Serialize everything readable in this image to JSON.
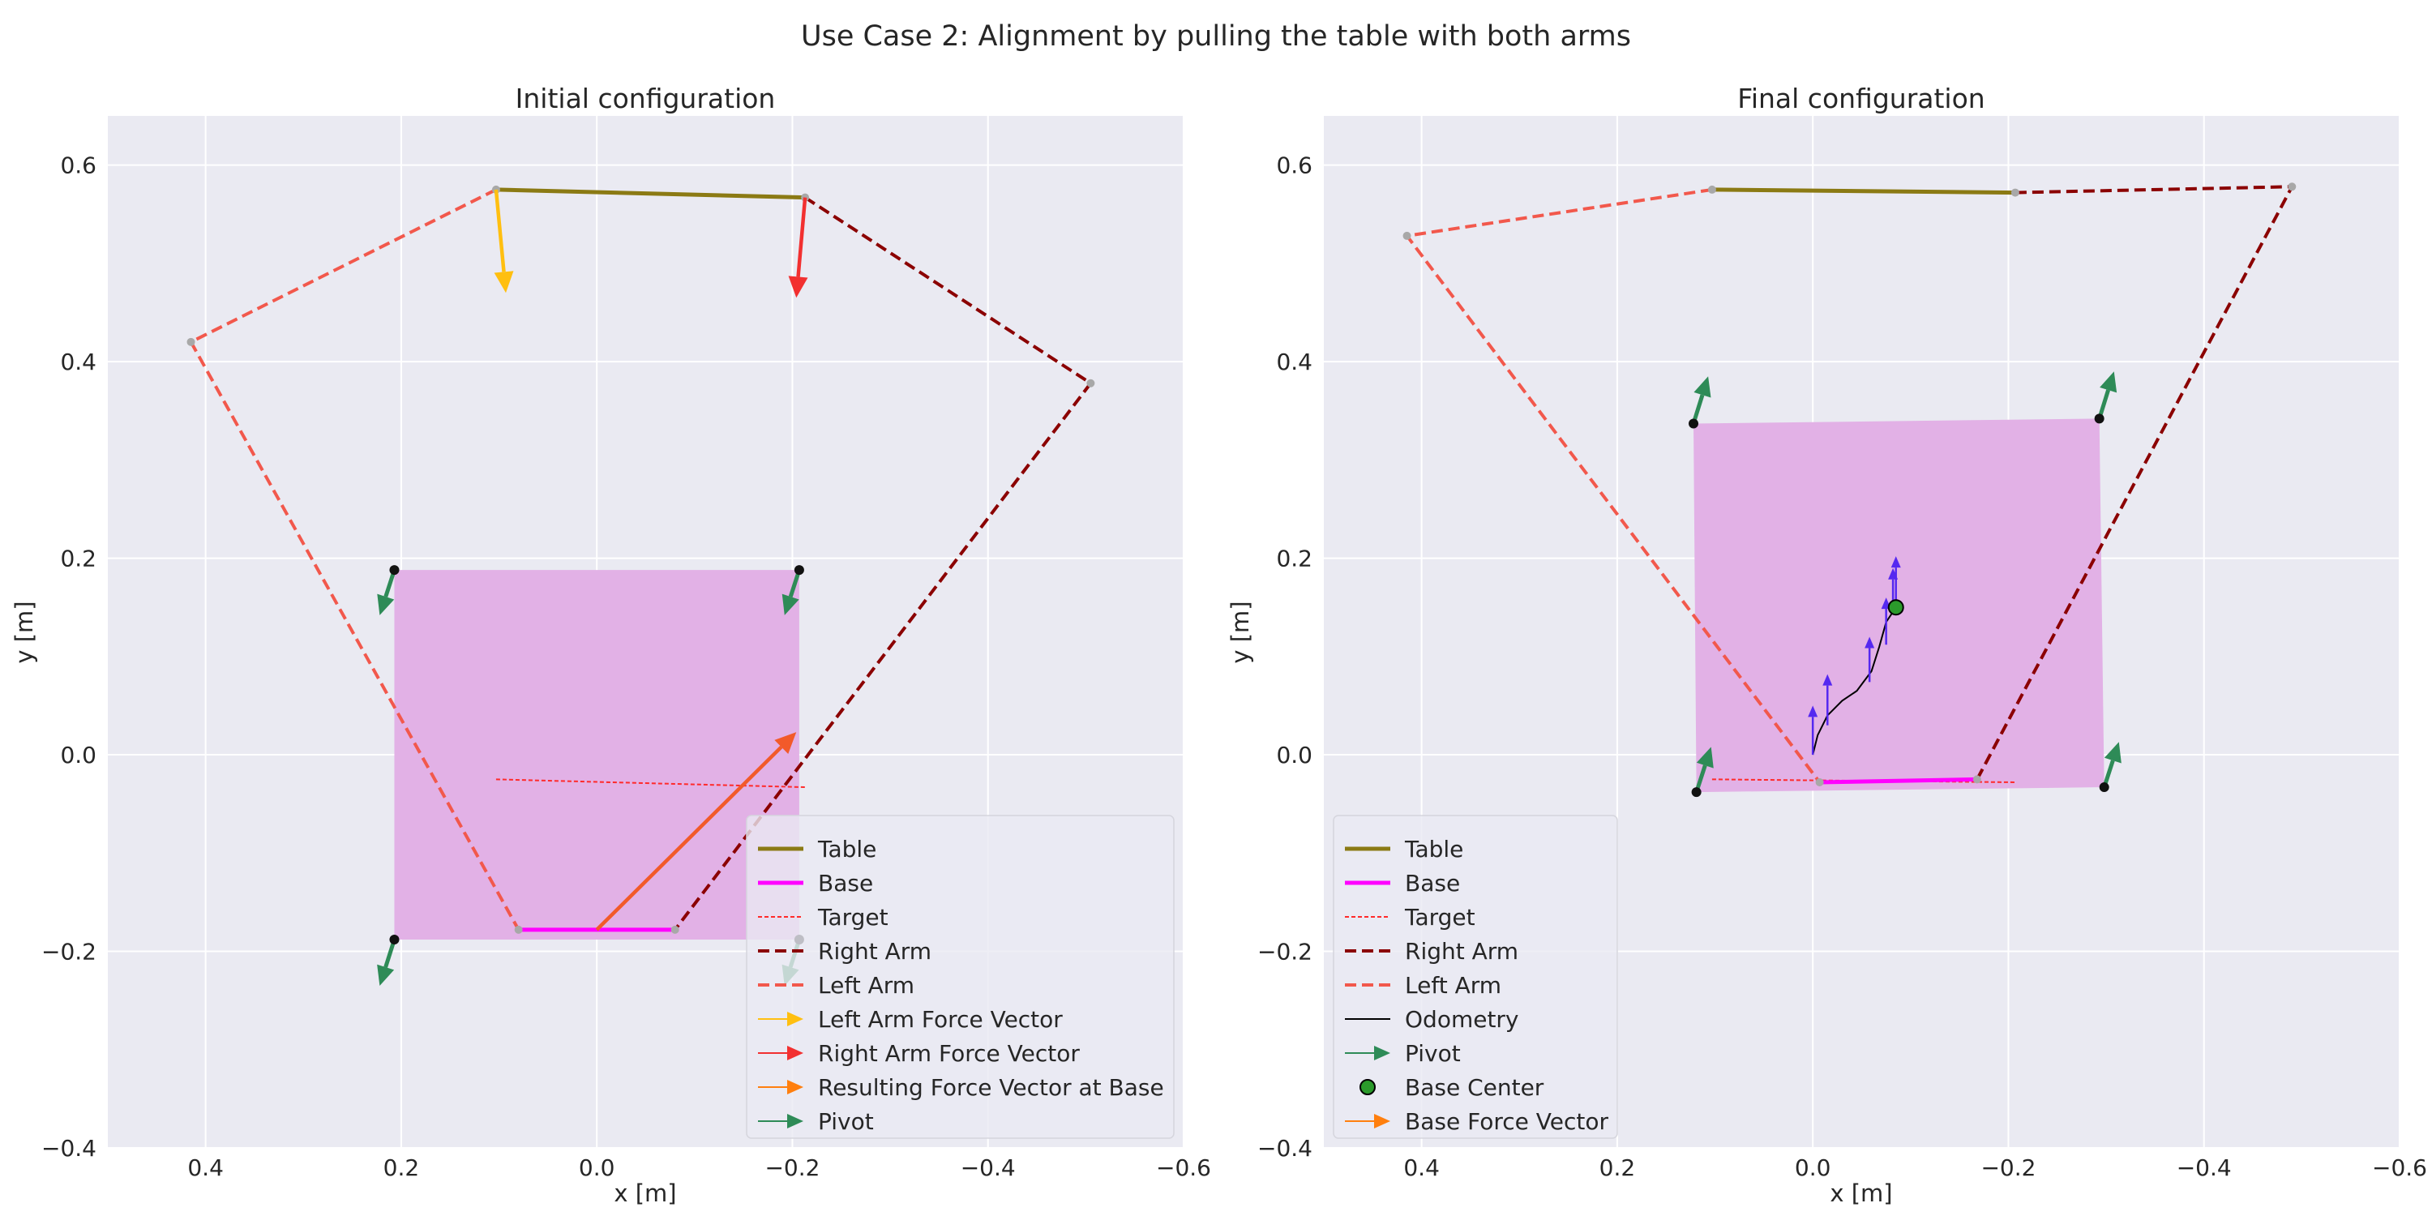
{
  "figure_title": "Use Case 2: Alignment by pulling the table with both arms",
  "colors": {
    "table": "#8b7a14",
    "base": "#ff00ff",
    "target": "#ff2a2a",
    "right_arm": "#8b0000",
    "left_arm": "#f2584c",
    "left_force": "#ffbf10",
    "right_force": "#f23030",
    "resulting_force": "#f25a2a",
    "pivot": "#2e8b57",
    "odometry": "#000000",
    "base_force": "#5528f0",
    "footprint": "#e2b1e6",
    "base_center": "#2b9a2b"
  },
  "chart_data": [
    {
      "type": "line",
      "title": "Initial configuration",
      "xlabel": "x [m]",
      "ylabel": "y [m]",
      "xlim": [
        0.5,
        -0.6
      ],
      "ylim": [
        -0.4,
        0.65
      ],
      "x_ticks": [
        "0.4",
        "0.2",
        "0.0",
        "−0.2",
        "−0.4",
        "−0.6"
      ],
      "x_tick_values": [
        0.4,
        0.2,
        0.0,
        -0.2,
        -0.4,
        -0.6
      ],
      "y_ticks": [
        "0.6",
        "0.4",
        "0.2",
        "0.0",
        "−0.2",
        "−0.4"
      ],
      "y_tick_values": [
        0.6,
        0.4,
        0.2,
        0.0,
        -0.2,
        -0.4
      ],
      "grid": true,
      "legend_position": "lower-right",
      "footprint": [
        [
          0.207,
          0.188
        ],
        [
          -0.207,
          0.188
        ],
        [
          -0.207,
          -0.188
        ],
        [
          0.207,
          -0.188
        ]
      ],
      "table": [
        [
          0.103,
          0.575
        ],
        [
          -0.213,
          0.567
        ]
      ],
      "base": [
        [
          0.08,
          -0.178
        ],
        [
          -0.08,
          -0.178
        ]
      ],
      "target": [
        [
          0.103,
          -0.025
        ],
        [
          -0.213,
          -0.033
        ]
      ],
      "right_arm": [
        [
          -0.213,
          0.567
        ],
        [
          -0.505,
          0.378
        ],
        [
          -0.08,
          -0.178
        ]
      ],
      "left_arm": [
        [
          0.103,
          0.575
        ],
        [
          0.415,
          0.42
        ],
        [
          0.08,
          -0.178
        ]
      ],
      "left_force": [
        [
          0.103,
          0.575
        ],
        [
          0.093,
          0.47
        ]
      ],
      "right_force": [
        [
          -0.213,
          0.567
        ],
        [
          -0.204,
          0.465
        ]
      ],
      "resulting_force": [
        [
          0.0,
          -0.178
        ],
        [
          -0.204,
          0.023
        ]
      ],
      "pivots": [
        [
          [
            0.207,
            0.188
          ],
          [
            0.222,
            0.142
          ]
        ],
        [
          [
            -0.207,
            0.188
          ],
          [
            -0.192,
            0.142
          ]
        ],
        [
          [
            0.207,
            -0.188
          ],
          [
            0.222,
            -0.235
          ]
        ],
        [
          [
            -0.207,
            -0.188
          ],
          [
            -0.192,
            -0.235
          ]
        ]
      ],
      "legend": [
        "Table",
        "Base",
        "Target",
        "Right Arm",
        "Left Arm",
        "Left Arm Force Vector",
        "Right Arm Force Vector",
        "Resulting Force Vector at Base",
        "Pivot"
      ]
    },
    {
      "type": "line",
      "title": "Final configuration",
      "xlabel": "x [m]",
      "ylabel": "y [m]",
      "xlim": [
        0.5,
        -0.6
      ],
      "ylim": [
        -0.4,
        0.65
      ],
      "x_ticks": [
        "0.4",
        "0.2",
        "0.0",
        "−0.2",
        "−0.4",
        "−0.6"
      ],
      "x_tick_values": [
        0.4,
        0.2,
        0.0,
        -0.2,
        -0.4,
        -0.6
      ],
      "y_ticks": [
        "0.6",
        "0.4",
        "0.2",
        "0.0",
        "−0.2",
        "−0.4"
      ],
      "y_tick_values": [
        0.6,
        0.4,
        0.2,
        0.0,
        -0.2,
        -0.4
      ],
      "grid": true,
      "legend_position": "lower-left",
      "footprint": [
        [
          0.122,
          0.337
        ],
        [
          -0.293,
          0.342
        ],
        [
          -0.298,
          -0.033
        ],
        [
          0.119,
          -0.038
        ]
      ],
      "table": [
        [
          0.103,
          0.575
        ],
        [
          -0.207,
          0.572
        ]
      ],
      "base": [
        [
          -0.007,
          -0.028
        ],
        [
          -0.168,
          -0.025
        ]
      ],
      "target": [
        [
          0.103,
          -0.025
        ],
        [
          -0.207,
          -0.028
        ]
      ],
      "right_arm": [
        [
          -0.207,
          0.572
        ],
        [
          -0.49,
          0.578
        ],
        [
          -0.168,
          -0.025
        ]
      ],
      "left_arm": [
        [
          0.103,
          0.575
        ],
        [
          0.415,
          0.528
        ],
        [
          -0.007,
          -0.028
        ]
      ],
      "odometry": [
        [
          0.0,
          0.0
        ],
        [
          -0.005,
          0.02
        ],
        [
          -0.015,
          0.04
        ],
        [
          -0.03,
          0.055
        ],
        [
          -0.045,
          0.065
        ],
        [
          -0.06,
          0.085
        ],
        [
          -0.068,
          0.11
        ],
        [
          -0.075,
          0.135
        ],
        [
          -0.085,
          0.15
        ]
      ],
      "base_center": [
        -0.085,
        0.15
      ],
      "base_forces": [
        [
          [
            0.0,
            0.0
          ],
          [
            0.0,
            0.05
          ]
        ],
        [
          [
            -0.015,
            0.03
          ],
          [
            -0.015,
            0.082
          ]
        ],
        [
          [
            -0.058,
            0.074
          ],
          [
            -0.058,
            0.12
          ]
        ],
        [
          [
            -0.075,
            0.112
          ],
          [
            -0.075,
            0.16
          ]
        ],
        [
          [
            -0.085,
            0.15
          ],
          [
            -0.085,
            0.202
          ]
        ],
        [
          [
            -0.082,
            0.145
          ],
          [
            -0.082,
            0.19
          ]
        ]
      ],
      "pivots": [
        [
          [
            0.122,
            0.337
          ],
          [
            0.107,
            0.385
          ]
        ],
        [
          [
            -0.293,
            0.342
          ],
          [
            -0.308,
            0.39
          ]
        ],
        [
          [
            0.119,
            -0.038
          ],
          [
            0.104,
            0.008
          ]
        ],
        [
          [
            -0.298,
            -0.033
          ],
          [
            -0.313,
            0.013
          ]
        ]
      ],
      "legend": [
        "Table",
        "Base",
        "Target",
        "Right Arm",
        "Left Arm",
        "Odometry",
        "Pivot",
        "Base Center",
        "Base Force Vector"
      ]
    }
  ]
}
